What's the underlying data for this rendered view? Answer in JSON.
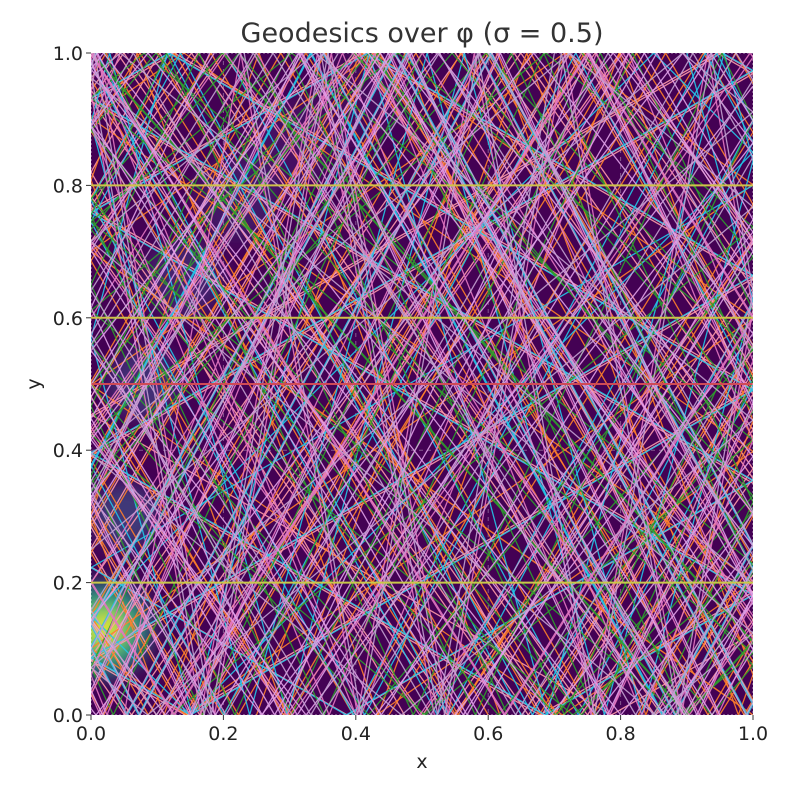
{
  "chart_data": {
    "type": "heatmap",
    "title": "Geodesics over φ (σ = 0.5)",
    "xlabel": "x",
    "ylabel": "y",
    "xlim": [
      0.0,
      1.0
    ],
    "ylim": [
      0.0,
      1.0
    ],
    "x_ticks": [
      "0.0",
      "0.2",
      "0.4",
      "0.6",
      "0.8",
      "1.0"
    ],
    "y_ticks": [
      "0.0",
      "0.2",
      "0.4",
      "0.6",
      "0.8",
      "1.0"
    ],
    "grid": true,
    "colormap": "viridis",
    "background_color": "#440154",
    "density_field": {
      "description": "scalar field φ, maximum near the left edge",
      "peak": {
        "x": 0.02,
        "y": 0.13
      },
      "ridge": [
        [
          0.02,
          0.13
        ],
        [
          0.05,
          0.3
        ],
        [
          0.08,
          0.5
        ],
        [
          0.14,
          0.66
        ],
        [
          0.22,
          0.78
        ],
        [
          0.3,
          0.86
        ],
        [
          0.4,
          0.93
        ]
      ]
    },
    "horizontal_geodesics": [
      {
        "y": 0.2,
        "color": "#c9c84a"
      },
      {
        "y": 0.5,
        "color": "#d04a56"
      },
      {
        "y": 0.6,
        "color": "#cfc24a"
      },
      {
        "y": 0.8,
        "color": "#cfc24a"
      }
    ],
    "reflecting_geodesics": [
      {
        "x0": 0.0,
        "y0": 0.2,
        "angle_deg": 55,
        "color": "#ff9aa8"
      },
      {
        "x0": 0.3,
        "y0": 0.0,
        "angle_deg": 125,
        "color": "#ff9aa8"
      },
      {
        "x0": 0.55,
        "y0": 1.0,
        "angle_deg": -55,
        "color": "#ff9aa8"
      },
      {
        "x0": 0.7,
        "y0": 0.0,
        "angle_deg": 60,
        "color": "#ff9aa8"
      },
      {
        "x0": 0.0,
        "y0": 0.45,
        "angle_deg": 30,
        "color": "#ff9aa8"
      },
      {
        "x0": 1.0,
        "y0": 0.35,
        "angle_deg": 150,
        "color": "#ff9aa8"
      },
      {
        "x0": 0.1,
        "y0": 1.0,
        "angle_deg": -60,
        "color": "#ff7f2a"
      },
      {
        "x0": 0.45,
        "y0": 0.0,
        "angle_deg": 58,
        "color": "#ff7f2a"
      },
      {
        "x0": 0.8,
        "y0": 1.0,
        "angle_deg": -120,
        "color": "#ff7f2a"
      },
      {
        "x0": 0.0,
        "y0": 0.7,
        "angle_deg": -35,
        "color": "#ff7f2a"
      },
      {
        "x0": 0.6,
        "y0": 0.0,
        "angle_deg": 120,
        "color": "#ff7f2a"
      },
      {
        "x0": 0.25,
        "y0": 0.0,
        "angle_deg": 70,
        "color": "#ff7f2a"
      },
      {
        "x0": 0.0,
        "y0": 0.1,
        "angle_deg": 62,
        "color": "#24c7e8"
      },
      {
        "x0": 0.35,
        "y0": 1.0,
        "angle_deg": -62,
        "color": "#24c7e8"
      },
      {
        "x0": 0.65,
        "y0": 0.0,
        "angle_deg": 118,
        "color": "#24c7e8"
      },
      {
        "x0": 1.0,
        "y0": 0.8,
        "angle_deg": -150,
        "color": "#24c7e8"
      },
      {
        "x0": 0.15,
        "y0": 0.0,
        "angle_deg": 45,
        "color": "#24c7e8"
      },
      {
        "x0": 0.9,
        "y0": 1.0,
        "angle_deg": -75,
        "color": "#24c7e8"
      },
      {
        "x0": 0.0,
        "y0": 0.35,
        "angle_deg": 50,
        "color": "#2ca02c"
      },
      {
        "x0": 0.5,
        "y0": 1.0,
        "angle_deg": -115,
        "color": "#2ca02c"
      },
      {
        "x0": 0.85,
        "y0": 0.0,
        "angle_deg": 65,
        "color": "#2ca02c"
      },
      {
        "x0": 1.0,
        "y0": 0.55,
        "angle_deg": 140,
        "color": "#2ca02c"
      },
      {
        "x0": 0.2,
        "y0": 1.0,
        "angle_deg": -48,
        "color": "#2ca02c"
      },
      {
        "x0": 0.0,
        "y0": 0.6,
        "angle_deg": 58,
        "color": "#e377c2"
      },
      {
        "x0": 0.4,
        "y0": 0.0,
        "angle_deg": 112,
        "color": "#e377c2"
      },
      {
        "x0": 0.75,
        "y0": 1.0,
        "angle_deg": -65,
        "color": "#e377c2"
      },
      {
        "x0": 1.0,
        "y0": 0.15,
        "angle_deg": 125,
        "color": "#e377c2"
      },
      {
        "x0": 0.05,
        "y0": 0.0,
        "angle_deg": 80,
        "color": "#e377c2"
      },
      {
        "x0": 0.55,
        "y0": 0.0,
        "angle_deg": 52,
        "color": "#e0a0e8"
      },
      {
        "x0": 0.0,
        "y0": 0.9,
        "angle_deg": -58,
        "color": "#e0a0e8"
      },
      {
        "x0": 0.95,
        "y0": 0.0,
        "angle_deg": 115,
        "color": "#e0a0e8"
      },
      {
        "x0": 0.3,
        "y0": 1.0,
        "angle_deg": -120,
        "color": "#e0a0e8"
      },
      {
        "x0": 1.0,
        "y0": 0.95,
        "angle_deg": -128,
        "color": "#e0a0e8"
      },
      {
        "x0": 0.0,
        "y0": 0.25,
        "angle_deg": 40,
        "color": "#c3a0d0"
      },
      {
        "x0": 0.6,
        "y0": 1.0,
        "angle_deg": -60,
        "color": "#c3a0d0"
      },
      {
        "x0": 0.9,
        "y0": 0.0,
        "angle_deg": 122,
        "color": "#c3a0d0"
      },
      {
        "x0": 0.18,
        "y0": 0.0,
        "angle_deg": 118,
        "color": "#c3a0d0"
      },
      {
        "x0": 0.7,
        "y0": 1.0,
        "angle_deg": -100,
        "color": "#c3a0d0"
      }
    ]
  }
}
